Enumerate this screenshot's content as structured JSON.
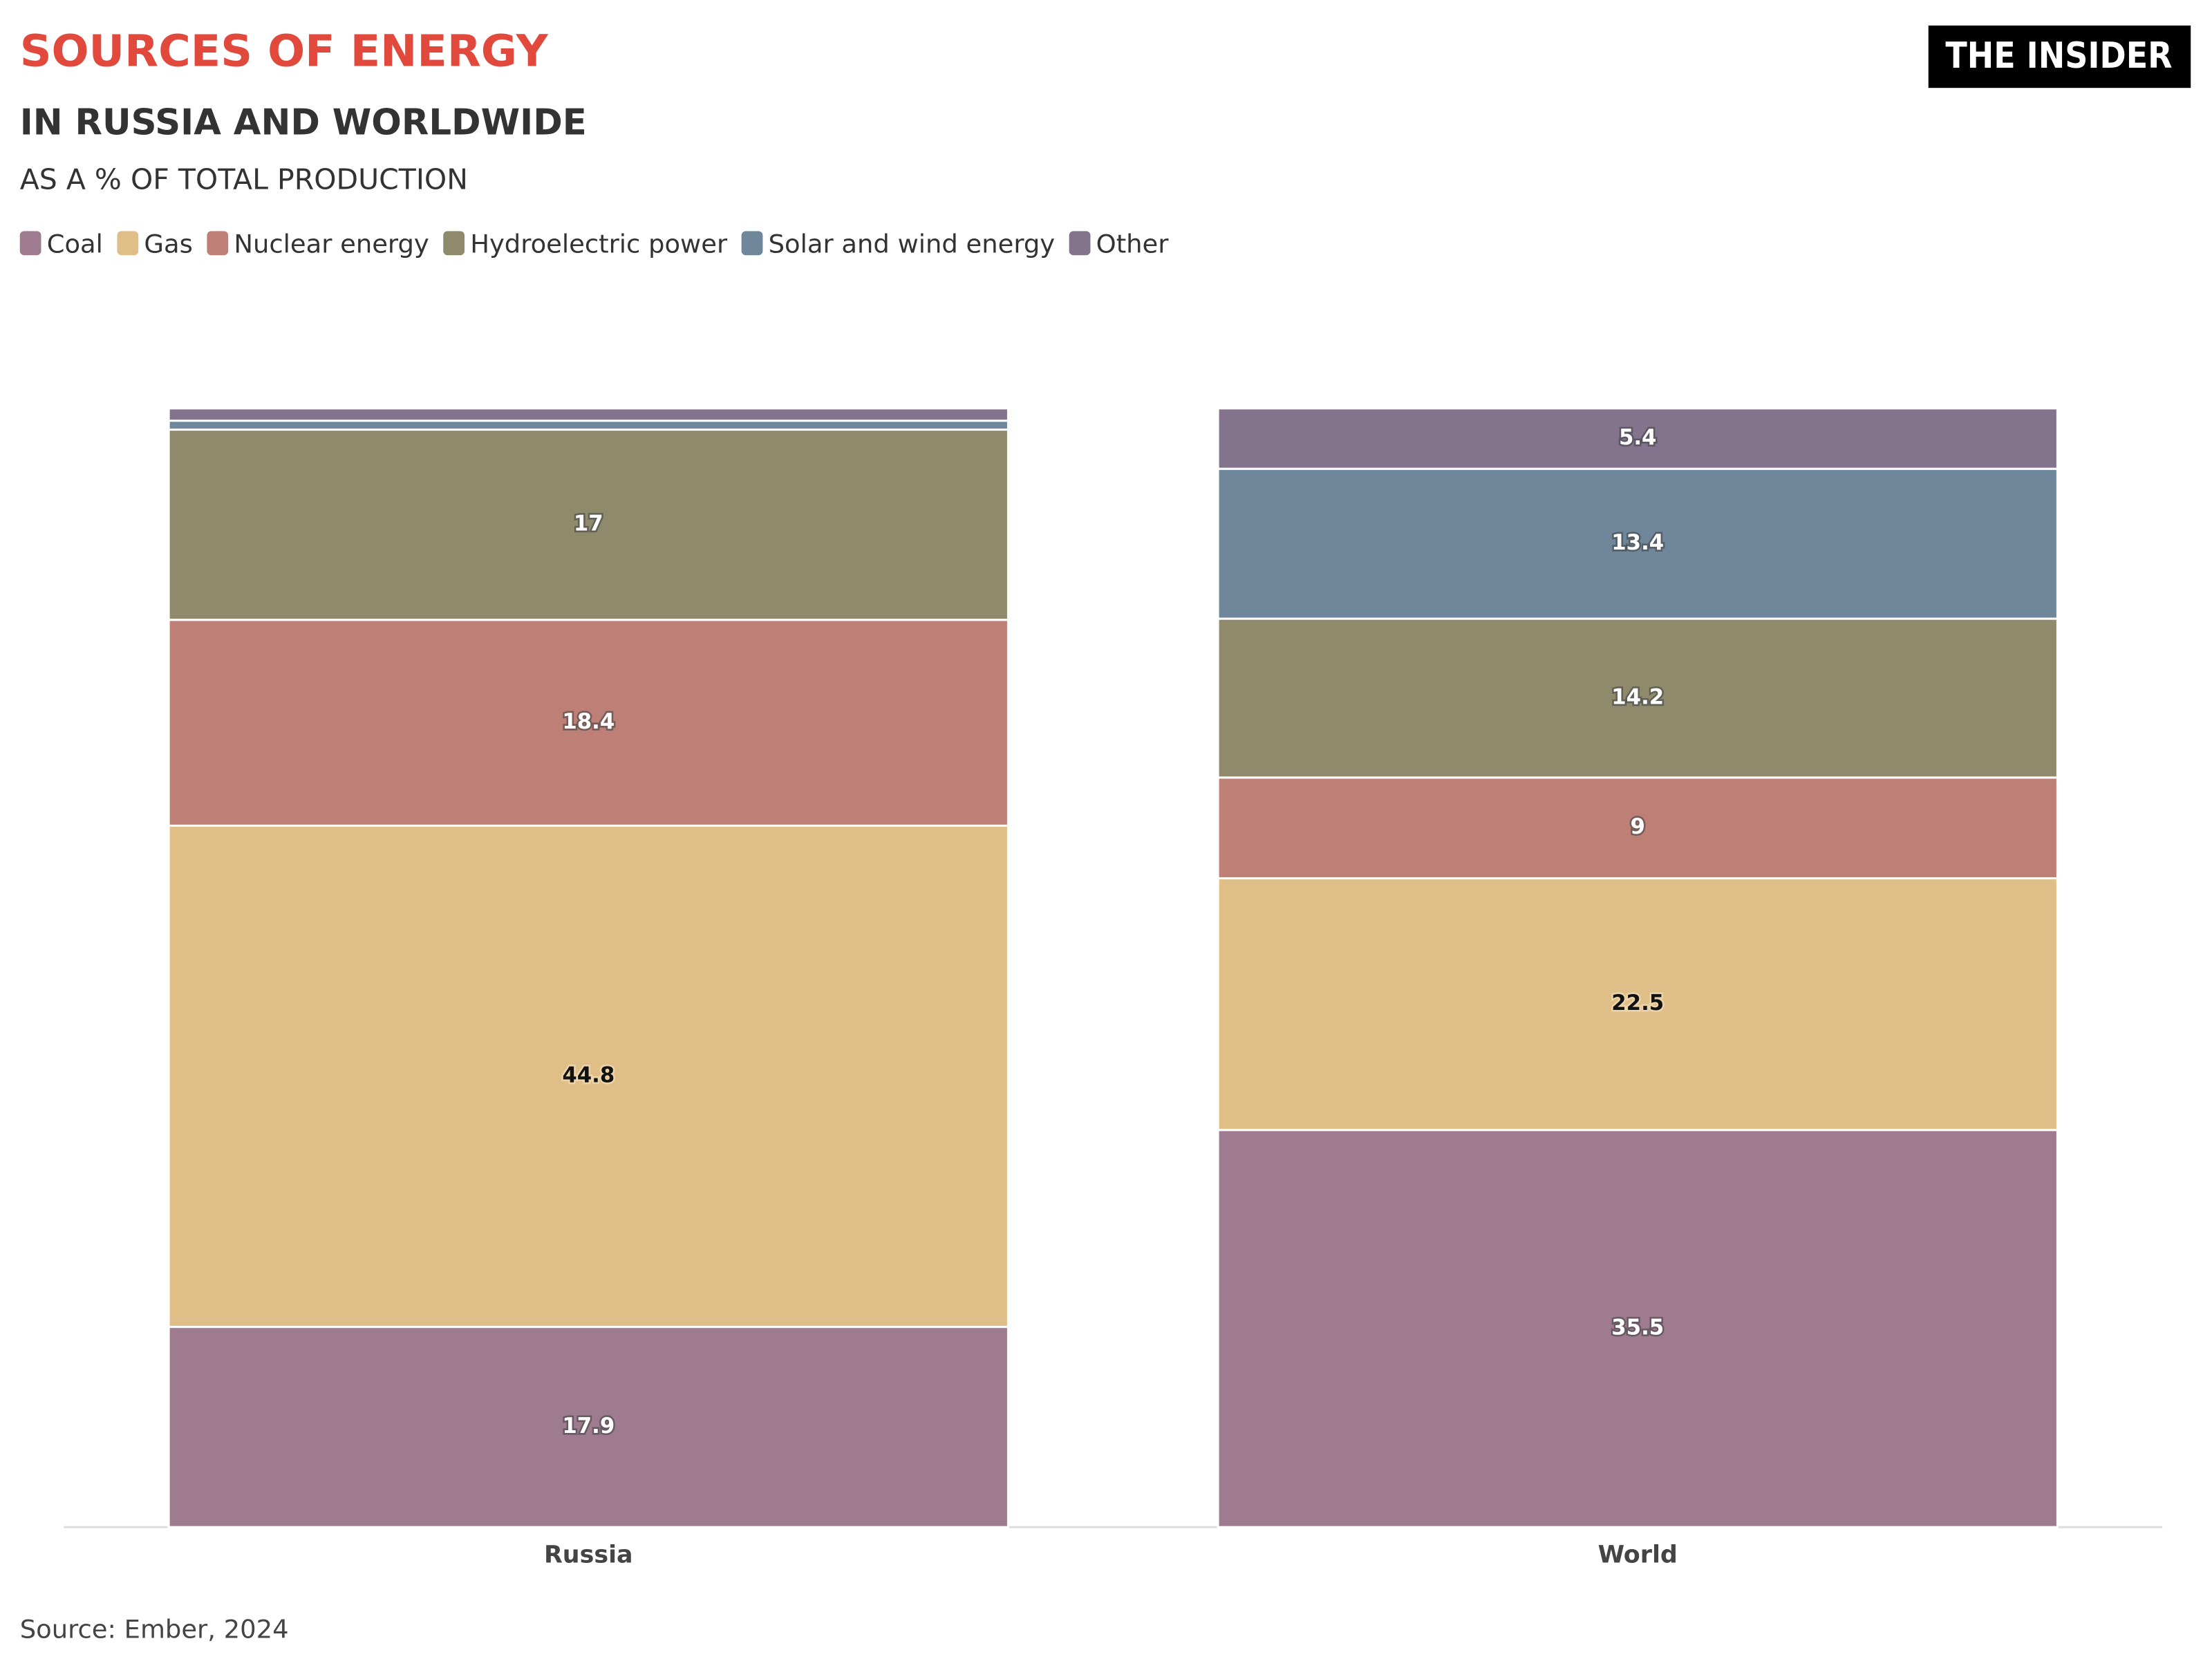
{
  "chart_data": {
    "type": "stacked-bar",
    "title": "SOURCES OF ENERGY",
    "subtitle": "IN RUSSIA AND WORLDWIDE",
    "y_label": "AS A % OF TOTAL PRODUCTION",
    "logo": "THE INSIDER",
    "source": "Source: Ember, 2024",
    "categories": [
      "Russia",
      "World"
    ],
    "ylim": [
      0,
      100
    ],
    "series": [
      {
        "name": "Coal",
        "color": "#9e7b8f",
        "values": [
          17.9,
          35.5
        ]
      },
      {
        "name": "Gas",
        "color": "#dfbe88",
        "values": [
          44.8,
          22.5
        ]
      },
      {
        "name": "Nuclear energy",
        "color": "#be7f76",
        "values": [
          18.4,
          9
        ]
      },
      {
        "name": "Hydroelectric power",
        "color": "#8e8a6b",
        "values": [
          17,
          14.2
        ]
      },
      {
        "name": "Solar and wind energy",
        "color": "#6f869b",
        "values": [
          0.8,
          13.4
        ]
      },
      {
        "name": "Other",
        "color": "#83738c",
        "values": [
          1.1,
          5.4
        ]
      }
    ]
  }
}
